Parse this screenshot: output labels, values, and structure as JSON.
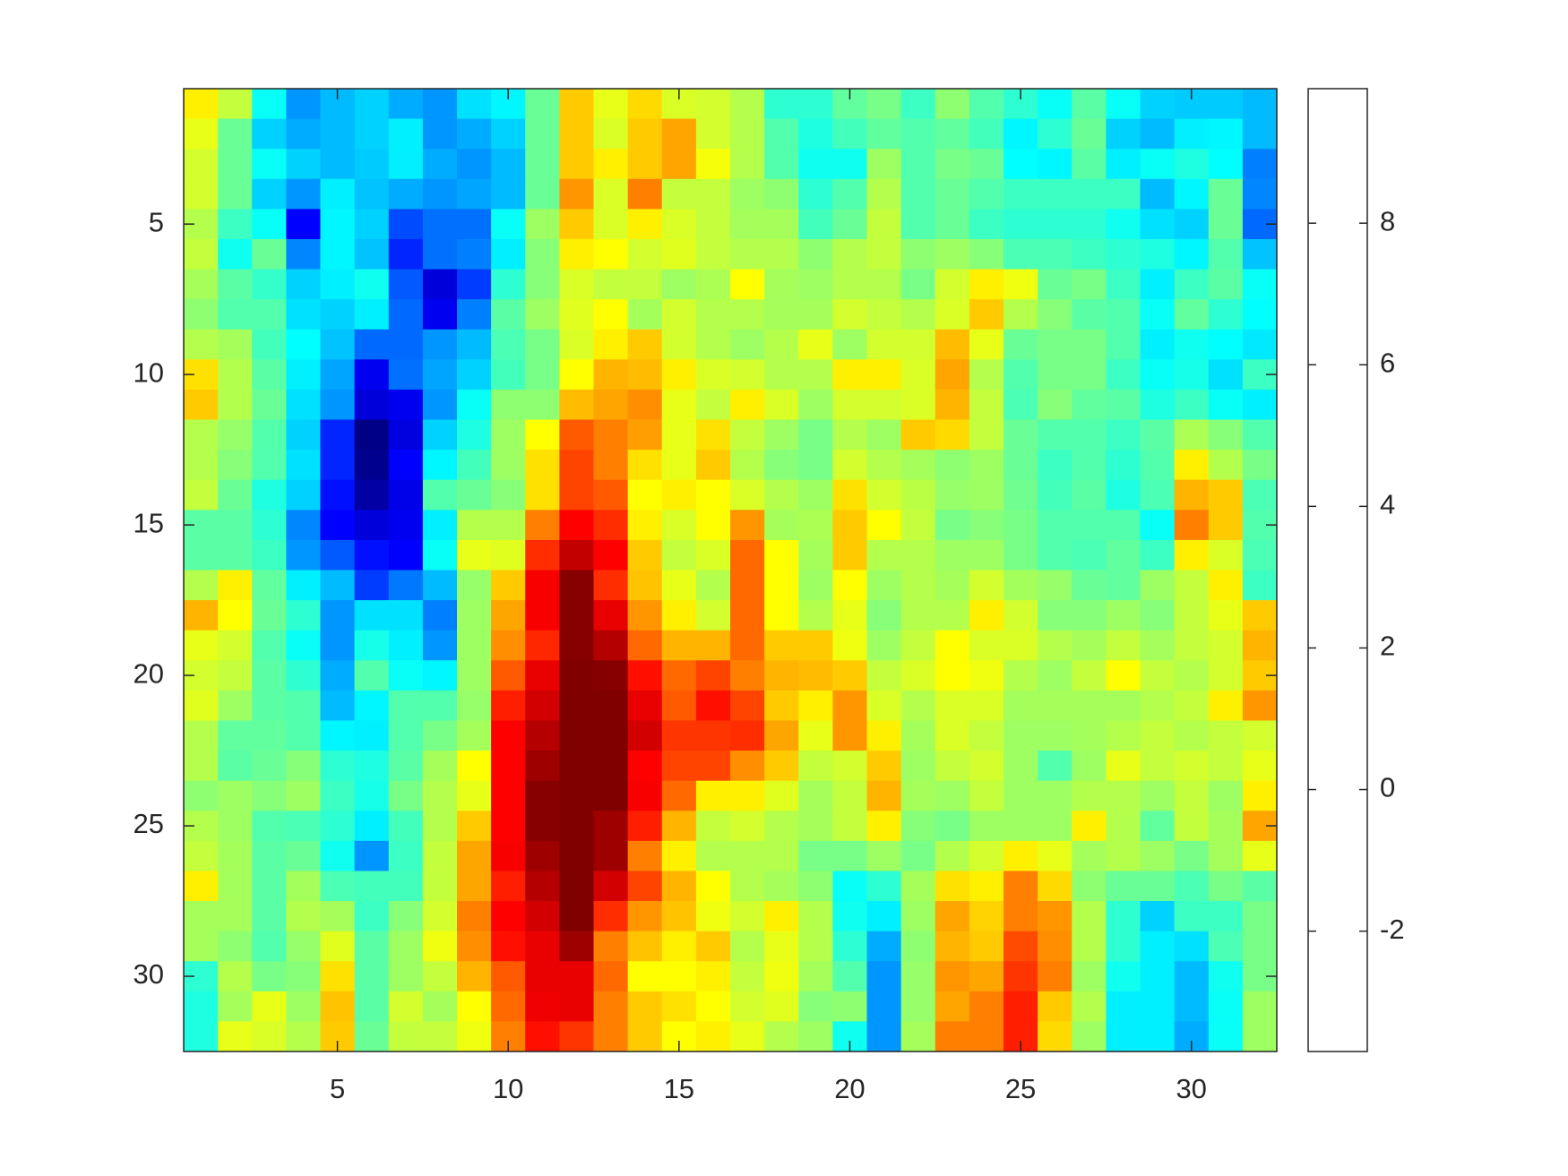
{
  "chart_data": {
    "type": "heatmap",
    "colormap": "jet",
    "yaxis_reversed": true,
    "x": [
      1,
      2,
      3,
      4,
      5,
      6,
      7,
      8,
      9,
      10,
      11,
      12,
      13,
      14,
      15,
      16,
      17,
      18,
      19,
      20,
      21,
      22,
      23,
      24,
      25,
      26,
      27,
      28,
      29,
      30,
      31,
      32
    ],
    "y": [
      1,
      2,
      3,
      4,
      5,
      6,
      7,
      8,
      9,
      10,
      11,
      12,
      13,
      14,
      15,
      16,
      17,
      18,
      19,
      20,
      21,
      22,
      23,
      24,
      25,
      26,
      27,
      28,
      29,
      30,
      31,
      32
    ],
    "xlim": [
      0.5,
      32.5
    ],
    "ylim": [
      0.5,
      32.5
    ],
    "xticks": [
      5,
      10,
      15,
      20,
      25,
      30
    ],
    "yticks": [
      5,
      10,
      15,
      20,
      25,
      30
    ],
    "clim": [
      -3.7,
      9.9
    ],
    "colorbar_ticks": [
      -2,
      0,
      2,
      4,
      6,
      8
    ],
    "z": [
      [
        5,
        4,
        1.5,
        0,
        0.5,
        0.8,
        0.3,
        0,
        1,
        1.3,
        2.8,
        5.5,
        4.5,
        5.3,
        4.3,
        4.2,
        3.8,
        2,
        2,
        2.7,
        3,
        2.2,
        3.3,
        2.5,
        2,
        1.5,
        2.6,
        1.5,
        0.8,
        0.7,
        0.7,
        0.5
      ],
      [
        4.5,
        2.8,
        0.8,
        0.3,
        0.5,
        0.8,
        1.2,
        0,
        0.3,
        0.8,
        2.8,
        5.5,
        4.3,
        5.5,
        6,
        4.2,
        3.8,
        2.5,
        1.8,
        2.3,
        2.7,
        2.5,
        2.7,
        2.3,
        1.3,
        2,
        2.8,
        0.8,
        0.5,
        1.2,
        1.3,
        0.5
      ],
      [
        4.2,
        2.8,
        1.5,
        0.8,
        0.5,
        0.7,
        1.2,
        0.3,
        0,
        0.5,
        2.8,
        5.5,
        5,
        5.5,
        6,
        4.7,
        3.8,
        2.5,
        1.6,
        1.6,
        3.5,
        2.5,
        3,
        2.8,
        1.4,
        1.3,
        2.6,
        1.2,
        1.5,
        1.8,
        1.4,
        -0.3
      ],
      [
        4.2,
        2.8,
        0.8,
        0,
        1.2,
        0.6,
        0.3,
        0,
        0.2,
        0.5,
        2.8,
        6.2,
        4.3,
        6.5,
        4,
        4,
        3.5,
        3.3,
        2,
        2.5,
        3.8,
        2.5,
        2.8,
        2.5,
        2.2,
        2.2,
        2.2,
        2.2,
        0.5,
        1.3,
        2.8,
        -0.2
      ],
      [
        3.8,
        2.2,
        1.5,
        -2,
        1.3,
        0.8,
        -1,
        -0.5,
        -0.5,
        1.5,
        3.5,
        5.5,
        4.3,
        5,
        4.3,
        4,
        3.6,
        3.6,
        2.3,
        2.8,
        4,
        2.5,
        2.8,
        2.2,
        2,
        2,
        2,
        1.6,
        1,
        0.8,
        2.8,
        -0.6
      ],
      [
        4,
        1.6,
        2.8,
        -0.2,
        1.3,
        0.6,
        -1.5,
        -0.5,
        -0.3,
        1.2,
        3.2,
        5,
        4.8,
        4.2,
        4.4,
        4,
        3.8,
        3.8,
        3.3,
        3.8,
        4,
        3.3,
        3.5,
        3.2,
        2.4,
        2.4,
        2.2,
        2,
        1.8,
        1.3,
        2.5,
        0.6
      ],
      [
        3.6,
        2.6,
        2.1,
        0.8,
        1.2,
        1.6,
        -0.8,
        -2.5,
        -1.2,
        2,
        3.2,
        4.3,
        4,
        4,
        3.5,
        3.7,
        4.8,
        3.6,
        3.5,
        3.8,
        3.8,
        3,
        4.2,
        5,
        4.6,
        2.8,
        3,
        2.2,
        1.2,
        2.2,
        2.6,
        1.5
      ],
      [
        3.3,
        2.5,
        2.5,
        1,
        0.8,
        1.2,
        -0.6,
        -2.2,
        -0.3,
        2.6,
        3.5,
        4.4,
        4.8,
        3.6,
        4.2,
        3.8,
        3.8,
        3.6,
        3.6,
        4.2,
        4,
        3.8,
        4.3,
        5.5,
        3.8,
        3.2,
        2.6,
        2.5,
        1.5,
        2.7,
        2,
        1.4
      ],
      [
        3.8,
        3.6,
        2.3,
        1.4,
        0.6,
        -0.6,
        -0.6,
        0,
        0.5,
        2.4,
        3,
        4.3,
        5,
        5.5,
        4.2,
        3.8,
        3.5,
        3.8,
        4.5,
        3.5,
        4.2,
        4.2,
        5.7,
        4.5,
        2.8,
        3,
        3,
        2.5,
        1.2,
        1.6,
        1.4,
        1.1
      ],
      [
        5.2,
        3.8,
        2.6,
        1.2,
        0.2,
        -2.2,
        -0.5,
        0.2,
        0.8,
        2.3,
        3,
        4.8,
        5.8,
        5.7,
        5,
        4.3,
        4.2,
        3.8,
        3.8,
        5,
        5,
        4.3,
        6,
        3.8,
        2.5,
        3,
        3,
        2.2,
        1.5,
        1.7,
        1,
        2.2
      ],
      [
        5.5,
        3.8,
        2.8,
        1,
        0,
        -2.5,
        -2.2,
        0,
        1.5,
        3.3,
        3.3,
        5.7,
        6,
        6.3,
        4.5,
        4,
        5,
        4.3,
        3.5,
        4.2,
        4.2,
        4.3,
        5.8,
        4,
        2.4,
        3.2,
        2.7,
        2.6,
        1.8,
        2.2,
        1.5,
        1.2
      ],
      [
        3.8,
        3.4,
        2.5,
        0.8,
        -1.5,
        -3.6,
        -2.4,
        0.8,
        1.8,
        3.5,
        4.8,
        7,
        6.5,
        6.1,
        4.5,
        5.2,
        4,
        3.5,
        3,
        3.8,
        3.5,
        5.5,
        5.3,
        4,
        2.8,
        2.5,
        2.5,
        2.2,
        2.6,
        3.7,
        3.2,
        2.5
      ],
      [
        3.8,
        3.2,
        2.5,
        1,
        -1.5,
        -3.5,
        -2,
        1.3,
        2.3,
        3.5,
        5.2,
        7.3,
        6.5,
        5.2,
        4.5,
        5.5,
        3.8,
        3.2,
        3,
        4.2,
        3.8,
        3.6,
        3.3,
        3.5,
        2.8,
        2.2,
        2.5,
        2,
        2.5,
        5,
        3.8,
        3
      ],
      [
        4,
        2.8,
        1.8,
        0.8,
        -1.8,
        -3.2,
        -2.3,
        2.5,
        2.8,
        3.2,
        5.2,
        7.3,
        7,
        4.8,
        5,
        4.8,
        4.3,
        3.8,
        3.5,
        5.2,
        4.2,
        3.9,
        3.4,
        3.5,
        2.9,
        2.3,
        2.6,
        1.8,
        2.4,
        5.8,
        5.5,
        2.4
      ],
      [
        2.6,
        2.6,
        2,
        -0.2,
        -2,
        -2.5,
        -2.2,
        1.2,
        3.8,
        3.8,
        6.5,
        8.2,
        7.6,
        5,
        4.3,
        4.8,
        6.2,
        3.6,
        3.7,
        5.5,
        4.8,
        4,
        3,
        3.2,
        3,
        2.5,
        2.5,
        2.5,
        1.5,
        6.5,
        5.5,
        2.5
      ],
      [
        2.6,
        2.6,
        2.2,
        0,
        -0.8,
        -1.8,
        -2,
        1.5,
        4.5,
        4.4,
        7.6,
        9,
        8.2,
        5.5,
        4,
        4.3,
        6.8,
        4.8,
        3.6,
        5.5,
        3.8,
        3.8,
        3.5,
        3.5,
        3,
        2.5,
        2.4,
        2.7,
        2.2,
        5,
        4.3,
        2.4
      ],
      [
        3.8,
        5,
        2.7,
        1.2,
        0.5,
        -1.2,
        -0.4,
        0.5,
        3.4,
        5.5,
        8.3,
        9.8,
        7.6,
        5.6,
        4.5,
        3.8,
        6.8,
        4.8,
        3.5,
        4.8,
        3.5,
        3.8,
        3.6,
        4.2,
        3.6,
        3.4,
        2.8,
        2.7,
        3.5,
        4,
        5,
        2.2
      ],
      [
        5.8,
        4.8,
        2.8,
        2,
        0,
        1,
        1,
        -0.3,
        3.5,
        6,
        8.3,
        9.8,
        8.5,
        6.2,
        5,
        4.2,
        6.8,
        4.8,
        3.8,
        4.5,
        3.2,
        3.8,
        3.8,
        5,
        4.2,
        3.2,
        3.2,
        3.5,
        3.2,
        4,
        4.5,
        5.5
      ],
      [
        4.5,
        4.2,
        2.5,
        1.5,
        0,
        1.7,
        1.2,
        0,
        3.5,
        6.3,
        7.7,
        9.8,
        9.2,
        6.8,
        5.8,
        5.8,
        6.8,
        5.5,
        5.5,
        4.6,
        3.5,
        4,
        4.8,
        4.3,
        4.3,
        3.8,
        3.6,
        4,
        3.6,
        4,
        4.2,
        5.8
      ],
      [
        4.2,
        4,
        2.6,
        2,
        0.3,
        2.5,
        1.5,
        1.3,
        3.5,
        7,
        8.5,
        9.9,
        9.8,
        8,
        6.8,
        7.3,
        6.5,
        5.8,
        5.7,
        5.5,
        4,
        4.3,
        4.8,
        4.6,
        3.8,
        3.5,
        4,
        4.8,
        4,
        3.8,
        4.2,
        5.5
      ],
      [
        4.4,
        3.5,
        2.6,
        2.5,
        0.5,
        1.3,
        2.5,
        2.5,
        3.4,
        7.8,
        8.8,
        9.9,
        9.9,
        8.5,
        7,
        8,
        7.3,
        5.5,
        5,
        6.2,
        4.3,
        3.8,
        4.3,
        4.3,
        3.6,
        3.6,
        3.6,
        3.6,
        3.8,
        4,
        5,
        6.2
      ],
      [
        3.8,
        2.7,
        2.7,
        2.5,
        1.3,
        1.2,
        2.5,
        3,
        3.6,
        8.2,
        9.2,
        9.9,
        9.9,
        8.8,
        7.5,
        7.5,
        7.6,
        6,
        4.5,
        6.2,
        5,
        3.6,
        4.3,
        4,
        3.5,
        3.5,
        3.6,
        3.8,
        4,
        3.8,
        4,
        4.2
      ],
      [
        3.8,
        2.6,
        2.8,
        3.2,
        2,
        1.8,
        2.6,
        3.6,
        4.8,
        8.2,
        9.5,
        9.9,
        9.9,
        8.2,
        7.3,
        7.3,
        6.3,
        5.5,
        4,
        4.2,
        5.5,
        3.5,
        4,
        4.2,
        3.5,
        2.5,
        3.5,
        4.5,
        4,
        4.2,
        4,
        4.5
      ],
      [
        3.3,
        3.5,
        3.2,
        3.5,
        2.2,
        1.7,
        3,
        3.8,
        4.5,
        8.2,
        9.8,
        9.9,
        9.9,
        8.3,
        6.8,
        5,
        5,
        4.4,
        3.6,
        4,
        5.8,
        3.6,
        3.5,
        4,
        3.5,
        3.5,
        3.8,
        3.8,
        3.5,
        4,
        3.5,
        5
      ],
      [
        3.8,
        3.5,
        2.5,
        2.4,
        2,
        1.2,
        2.3,
        3.8,
        5.5,
        8.2,
        9.8,
        9.9,
        9.5,
        7.8,
        5.8,
        4,
        4.2,
        3.8,
        3.6,
        4,
        5,
        3.2,
        3,
        3.5,
        3.5,
        3.5,
        5,
        3.8,
        2.7,
        4,
        3.6,
        6
      ],
      [
        4,
        3.6,
        2.6,
        2.8,
        1.6,
        0,
        2.2,
        4,
        6,
        8.3,
        9.5,
        9.9,
        9.5,
        6.5,
        5,
        3.8,
        3.8,
        3.8,
        3,
        3,
        3.5,
        3,
        3.8,
        4.2,
        5,
        4.5,
        3.6,
        3.8,
        3.5,
        3,
        3.6,
        4.5
      ],
      [
        5,
        3.6,
        2.6,
        3.6,
        2.4,
        2.3,
        2.3,
        4,
        6,
        7.8,
        9.2,
        9.9,
        8.8,
        7.3,
        5.8,
        4.8,
        3.8,
        3.6,
        3.3,
        1.5,
        2,
        3.6,
        5.2,
        5,
        6.5,
        5.3,
        3.3,
        2.8,
        2.8,
        2.4,
        3,
        2.6
      ],
      [
        3.6,
        3.6,
        2.6,
        3.8,
        3.6,
        2.2,
        3.2,
        4.2,
        6.5,
        8.2,
        8.8,
        9.9,
        7.6,
        6.2,
        5.6,
        4.6,
        4.2,
        5,
        3.8,
        1.6,
        1.2,
        3.5,
        6,
        5.4,
        6.5,
        6.2,
        3.8,
        2,
        0.8,
        2.2,
        2.2,
        3
      ],
      [
        3.6,
        3.3,
        2.5,
        3.4,
        4.4,
        2.6,
        3.5,
        4.6,
        6.3,
        8,
        8.5,
        9.5,
        6.5,
        5.6,
        5,
        5.5,
        3.8,
        4.5,
        3.8,
        2,
        0.3,
        3.3,
        5.8,
        5.5,
        7.2,
        6.3,
        3.8,
        2,
        1.2,
        1,
        2.4,
        3
      ],
      [
        2,
        3.8,
        3,
        3.2,
        5.2,
        2.6,
        3.5,
        4,
        5.8,
        7,
        8.5,
        8.5,
        6.8,
        4.8,
        4.8,
        5,
        4,
        4.6,
        3.6,
        2.5,
        0,
        3.4,
        6.2,
        6,
        7.5,
        6.5,
        3.5,
        1.6,
        1.2,
        0.5,
        1.6,
        3
      ],
      [
        1.8,
        3.6,
        4.5,
        3.5,
        5.6,
        2.6,
        4.2,
        3.6,
        4.8,
        6.8,
        8.4,
        8.5,
        6.5,
        5.5,
        5.2,
        4.8,
        4.2,
        4.4,
        3.2,
        3.3,
        0,
        3.4,
        6,
        6.5,
        7.8,
        5.5,
        3.8,
        1.2,
        1.2,
        0.5,
        1.5,
        3.5
      ],
      [
        1.8,
        4.5,
        4.3,
        3.8,
        5.5,
        2.8,
        4,
        4,
        4.6,
        6.5,
        8,
        7.5,
        6.5,
        5.5,
        4.8,
        5,
        4.5,
        3.8,
        3.5,
        1.6,
        0,
        3.6,
        6.5,
        6.5,
        7.8,
        5.3,
        3.5,
        1.2,
        1.2,
        0.3,
        1.5,
        3.5
      ]
    ]
  }
}
